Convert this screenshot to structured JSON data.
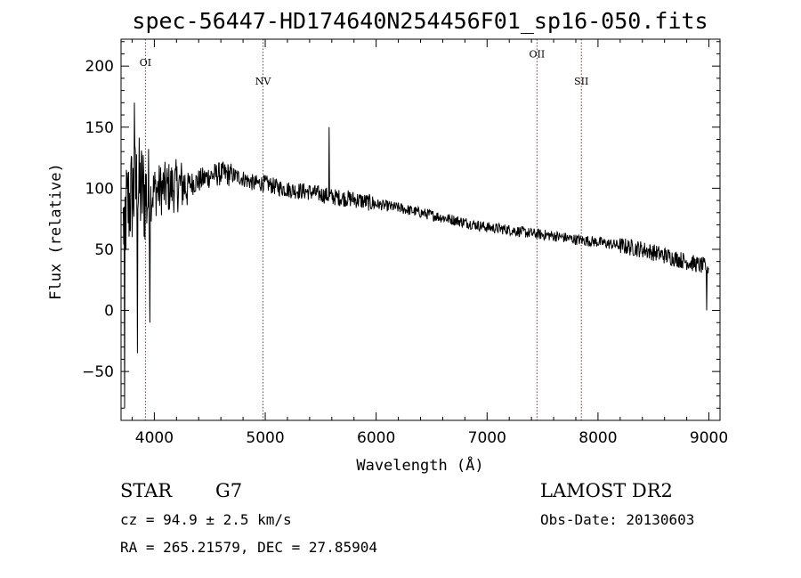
{
  "chart_data": {
    "type": "line",
    "title": "spec-56447-HD174640N254456F01_sp16-050.fits",
    "xlabel": "Wavelength (Å)",
    "ylabel": "Flux (relative)",
    "xlim": [
      3700,
      9100
    ],
    "ylim": [
      -90,
      222
    ],
    "xticks": [
      "4000",
      "5000",
      "6000",
      "7000",
      "8000",
      "9000"
    ],
    "yticks": [
      "−50",
      "0",
      "50",
      "100",
      "150",
      "200"
    ],
    "grid": false,
    "emission_lines": [
      {
        "name": "OI",
        "x": 3920,
        "label_y": 200
      },
      {
        "name": "NV",
        "x": 4980,
        "label_y": 185
      },
      {
        "name": "OII",
        "x": 7450,
        "label_y": 207
      },
      {
        "name": "SII",
        "x": 7850,
        "label_y": 185
      }
    ],
    "spectrum_shape": {
      "x": [
        3720,
        3760,
        3800,
        3850,
        3900,
        3950,
        4000,
        4100,
        4200,
        4300,
        4400,
        4500,
        4600,
        4700,
        4800,
        4900,
        5000,
        5100,
        5200,
        5300,
        5400,
        5500,
        5600,
        5700,
        5800,
        5900,
        6000,
        6200,
        6400,
        6600,
        6800,
        7000,
        7200,
        7400,
        7600,
        7800,
        8000,
        8200,
        8400,
        8600,
        8800,
        9000
      ],
      "y": [
        70,
        85,
        95,
        100,
        96,
        92,
        98,
        100,
        102,
        103,
        106,
        110,
        112,
        111,
        108,
        104,
        104,
        101,
        99,
        98,
        97,
        95,
        93,
        92,
        91,
        89,
        87,
        84,
        80,
        76,
        72,
        68,
        66,
        63,
        61,
        58,
        56,
        53,
        50,
        45,
        40,
        35
      ]
    },
    "spikes": [
      {
        "x": 5577,
        "y": 150
      },
      {
        "x": 3850,
        "y": -35
      },
      {
        "x": 3733,
        "y": -80
      },
      {
        "x": 3960,
        "y": -10
      },
      {
        "x": 3822,
        "y": 170
      },
      {
        "x": 8980,
        "y": 0
      }
    ]
  },
  "footer": {
    "object": "STAR",
    "subclass": "G7",
    "survey": "LAMOST DR2",
    "cz": "cz = 94.9 ± 2.5 km/s",
    "obs_date": "Obs-Date: 20130603",
    "coords": "RA = 265.21579, DEC =  27.85904"
  }
}
